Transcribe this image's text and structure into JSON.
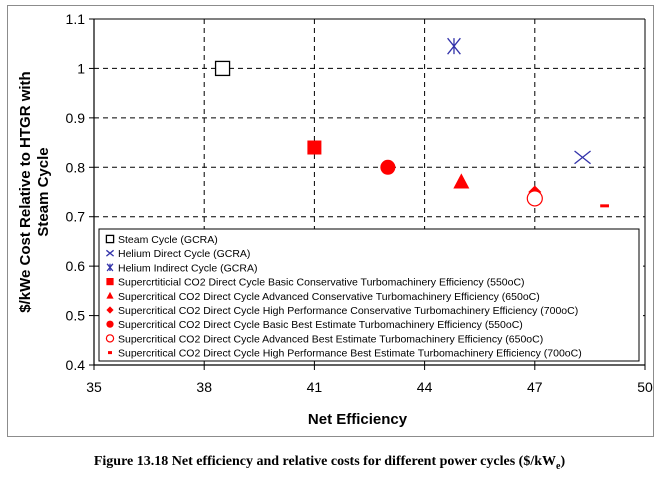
{
  "chart_data": {
    "type": "scatter",
    "xlabel": "Net Efficiency",
    "ylabel_line1": "$/kWe Cost Relative to HTGR with",
    "ylabel_line2": "Steam Cycle",
    "xlim": [
      35,
      50
    ],
    "ylim": [
      0.4,
      1.1
    ],
    "xticks": [
      35,
      38,
      41,
      44,
      47,
      50
    ],
    "yticks": [
      0.4,
      0.5,
      0.6,
      0.7,
      0.8,
      0.9,
      1,
      1.1
    ],
    "ytick_labels": [
      "0.4",
      "0.5",
      "0.6",
      "0.7",
      "0.8",
      "0.9",
      "1",
      "1.1"
    ],
    "grid": "dashed",
    "legend_position": "bottom-right inside plot",
    "series": [
      {
        "name": "Steam Cycle (GCRA)",
        "marker": "open-square",
        "color": "#000000",
        "points": [
          [
            38.5,
            1.0
          ]
        ]
      },
      {
        "name": "Helium Direct Cycle (GCRA)",
        "marker": "x",
        "color": "#3333aa",
        "points": [
          [
            48.3,
            0.82
          ]
        ]
      },
      {
        "name": "Helium Indirect Cycle (GCRA)",
        "marker": "star",
        "color": "#3333aa",
        "points": [
          [
            44.8,
            1.045
          ]
        ]
      },
      {
        "name": "Supercrtiticial CO2 Direct Cycle Basic Conservative Turbomachinery Efficiency (550oC)",
        "marker": "filled-square",
        "color": "#ff0000",
        "points": [
          [
            41.0,
            0.84
          ]
        ]
      },
      {
        "name": "Supercritical CO2 Direct Cycle Advanced Conservative Turbomachinery Efficiency (650oC)",
        "marker": "triangle",
        "color": "#ff0000",
        "points": [
          [
            45.0,
            0.77
          ]
        ]
      },
      {
        "name": "Supercritical CO2 Direct Cycle High Performance Conservative Turbomachinery Efficiency (700oC)",
        "marker": "diamond",
        "color": "#ff0000",
        "points": [
          [
            47.0,
            0.75
          ]
        ]
      },
      {
        "name": "Supercritical CO2 Direct Cycle Basic Best Estimate Turbomachinery Efficiency (550oC)",
        "marker": "filled-circle",
        "color": "#ff0000",
        "points": [
          [
            43.0,
            0.8
          ]
        ]
      },
      {
        "name": "Supercritical CO2 Direct Cycle Advanced Best Estimate Turbomachinery Efficiency (650oC)",
        "marker": "open-circle",
        "color": "#ff0000",
        "points": [
          [
            47.0,
            0.737
          ]
        ]
      },
      {
        "name": "Supercritical CO2 Direct Cycle High Performance Best Estimate Turbomachinery Efficiency (700oC)",
        "marker": "dash",
        "color": "#ff0000",
        "points": [
          [
            48.9,
            0.722
          ]
        ]
      }
    ]
  },
  "caption": {
    "text": "Figure 13.18 Net efficiency and relative costs for different power cycles ($/kW",
    "sub": "e",
    "close": ")"
  }
}
